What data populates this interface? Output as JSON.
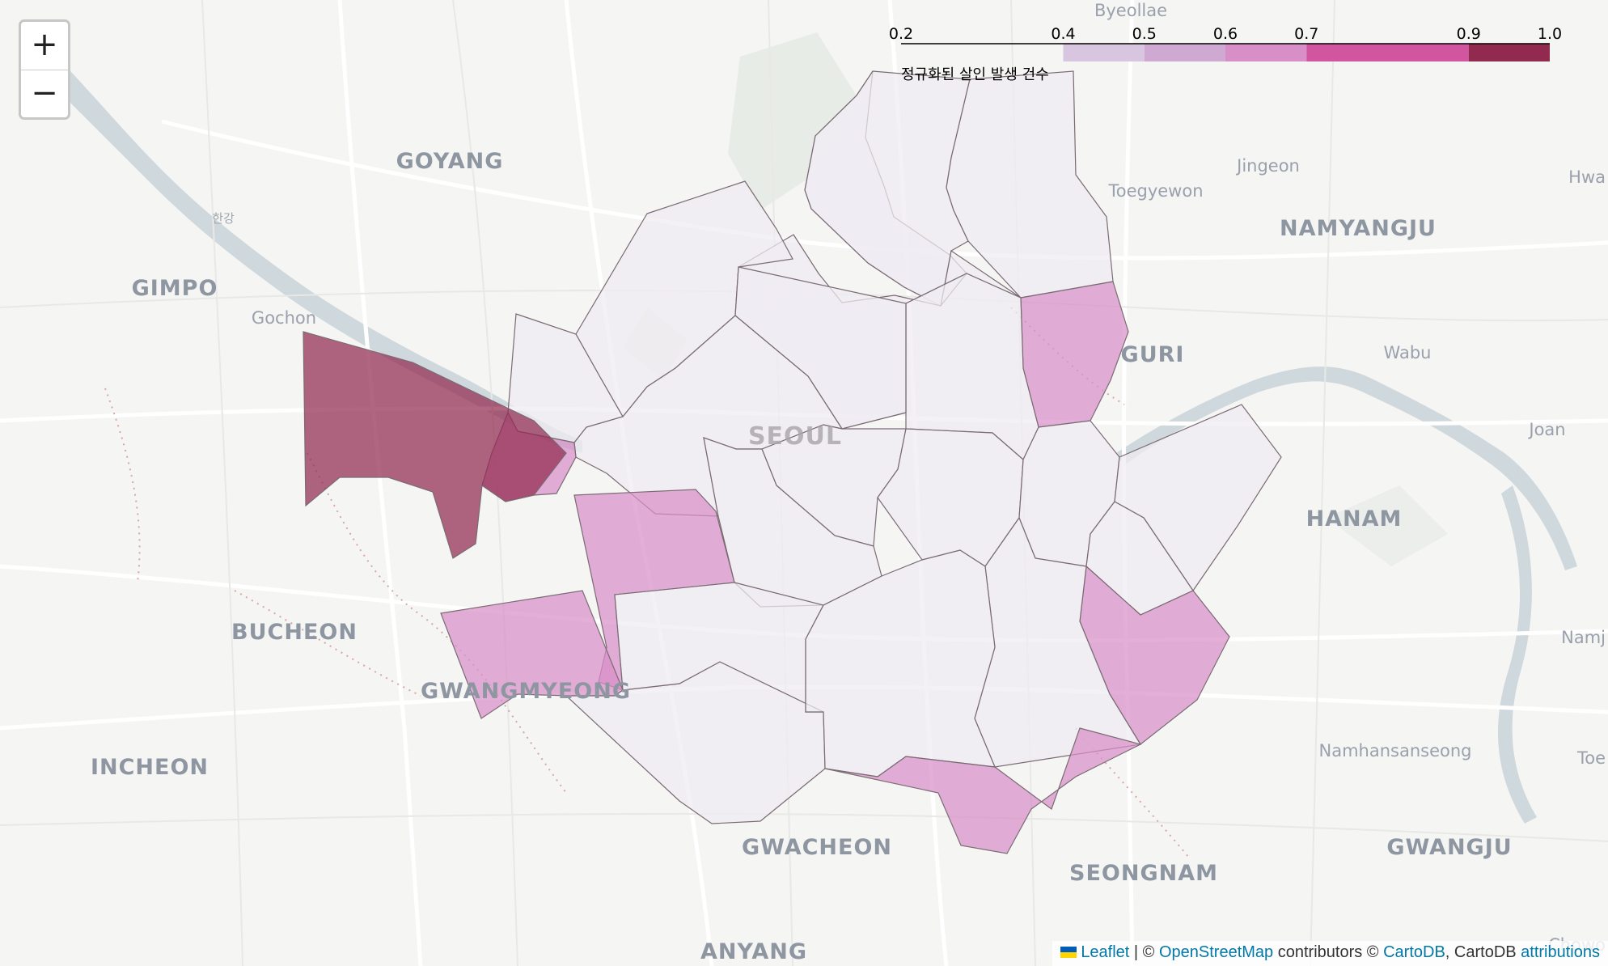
{
  "map": {
    "places": [
      {
        "name": "Byeollae",
        "size": "mid"
      },
      {
        "name": "GOYANG",
        "size": "big"
      },
      {
        "name": "한강",
        "size": "small"
      },
      {
        "name": "GIMPO",
        "size": "big"
      },
      {
        "name": "Gochon",
        "size": "mid"
      },
      {
        "name": "Jingeon",
        "size": "mid"
      },
      {
        "name": "Toegyewon",
        "size": "mid"
      },
      {
        "name": "NAMYANGJU",
        "size": "big"
      },
      {
        "name": "Hwa",
        "size": "mid"
      },
      {
        "name": "GURI",
        "size": "big"
      },
      {
        "name": "Wabu",
        "size": "mid"
      },
      {
        "name": "SEOUL",
        "size": "city"
      },
      {
        "name": "Joan",
        "size": "mid"
      },
      {
        "name": "HANAM",
        "size": "big"
      },
      {
        "name": "BUCHEON",
        "size": "big"
      },
      {
        "name": "Namj",
        "size": "mid"
      },
      {
        "name": "GWANGMYEONG",
        "size": "big"
      },
      {
        "name": "INCHEON",
        "size": "big"
      },
      {
        "name": "Namhansanseong",
        "size": "mid"
      },
      {
        "name": "Toe",
        "size": "mid"
      },
      {
        "name": "GWACHEON",
        "size": "big"
      },
      {
        "name": "SEONGNAM",
        "size": "big"
      },
      {
        "name": "GWANGJU",
        "size": "big"
      },
      {
        "name": "ANYANG",
        "size": "big"
      },
      {
        "name": "Chowo",
        "size": "mid"
      }
    ],
    "districts": [
      {
        "value": 0.21
      },
      {
        "value": 0.38
      },
      {
        "value": 0.38
      },
      {
        "value": 0.22
      },
      {
        "value": 0.66
      },
      {
        "value": 0.35
      },
      {
        "value": 0.33
      },
      {
        "value": 0.22
      },
      {
        "value": 0.32
      },
      {
        "value": 0.21
      },
      {
        "value": 0.6
      },
      {
        "value": 0.22
      },
      {
        "value": 0.22
      },
      {
        "value": 0.21
      },
      {
        "value": 0.22
      },
      {
        "value": 0.21
      },
      {
        "value": 0.21
      },
      {
        "value": 0.63
      },
      {
        "value": 0.33
      },
      {
        "value": 1.0
      },
      {
        "value": 0.62
      },
      {
        "value": 0.66
      },
      {
        "value": 0.33
      },
      {
        "value": 0.33
      },
      {
        "value": 0.32
      },
      {
        "value": 0.62
      }
    ]
  },
  "legend": {
    "title": "정규화된 살인 발생 건수",
    "ticks": [
      "0.2",
      "0.4",
      "0.5",
      "0.6",
      "0.7",
      "0.9",
      "1.0"
    ],
    "colors": [
      "#d8c5e0",
      "#cfa9d2",
      "#d88fc7",
      "#d2559f",
      "#92294f"
    ]
  },
  "zoom": {
    "in": "+",
    "out": "−"
  },
  "attribution": {
    "leaflet": "Leaflet",
    "sep1": " | © ",
    "osm": "OpenStreetMap",
    "contributors": " contributors © ",
    "cartodb": "CartoDB",
    "comma": ", CartoDB ",
    "attributions": "attributions"
  }
}
